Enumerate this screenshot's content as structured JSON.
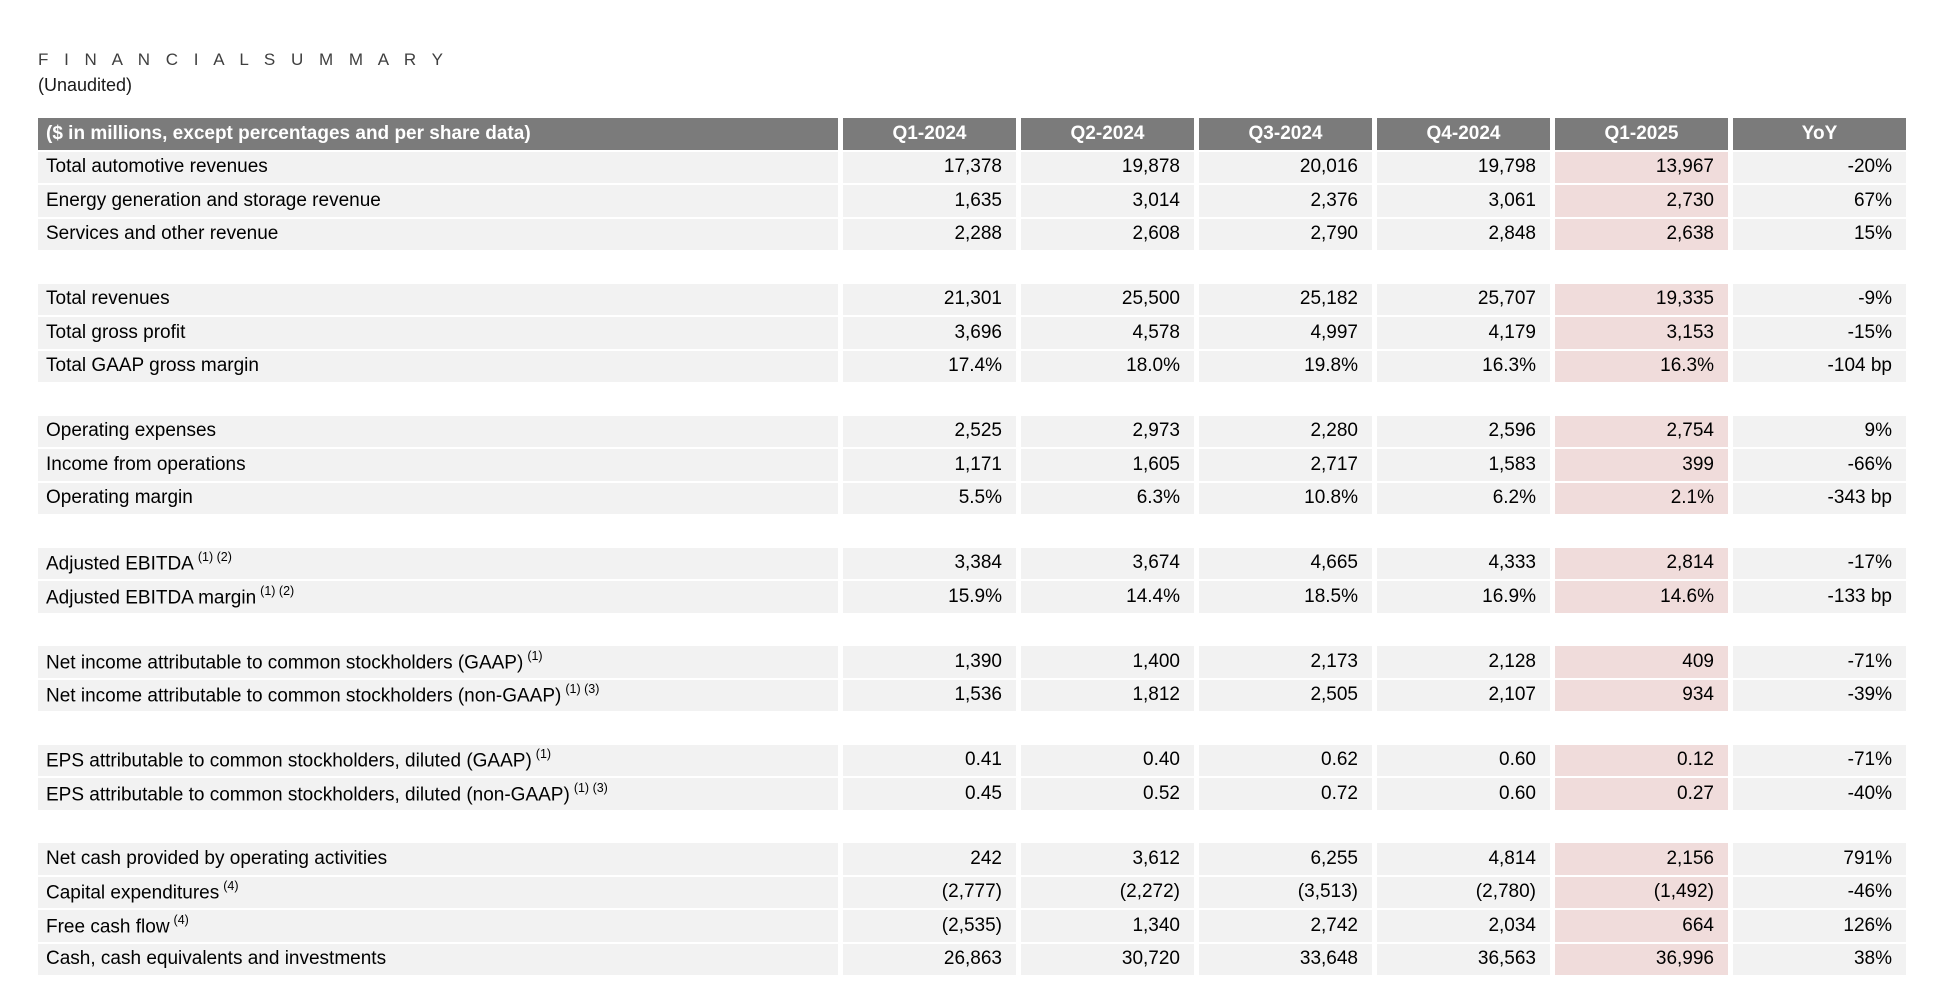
{
  "page": {
    "title": "F I N A N C I A L   S U M M A R Y",
    "subtitle": "(Unaudited)"
  },
  "colors": {
    "header_bg": "#7b7b7b",
    "header_text": "#ffffff",
    "row_bg": "#f2f2f2",
    "highlight_bg": "#f0dcdb",
    "title_text": "#3f3f3f"
  },
  "table": {
    "header": [
      "($ in millions, except percentages and per share data)",
      "Q1-2024",
      "Q2-2024",
      "Q3-2024",
      "Q4-2024",
      "Q1-2025",
      "YoY"
    ],
    "highlight_column": "Q1-2025",
    "highlight_value_index": 4,
    "rows": [
      {
        "type": "data",
        "label": "Total automotive revenues",
        "sup": "",
        "values": [
          "17,378",
          "19,878",
          "20,016",
          "19,798",
          "13,967",
          "-20%"
        ]
      },
      {
        "type": "data",
        "label": "Energy generation and storage revenue",
        "sup": "",
        "values": [
          "1,635",
          "3,014",
          "2,376",
          "3,061",
          "2,730",
          "67%"
        ]
      },
      {
        "type": "data",
        "label": "Services and other revenue",
        "sup": "",
        "values": [
          "2,288",
          "2,608",
          "2,790",
          "2,848",
          "2,638",
          "15%"
        ]
      },
      {
        "type": "spacer"
      },
      {
        "type": "data",
        "label": "Total revenues",
        "sup": "",
        "values": [
          "21,301",
          "25,500",
          "25,182",
          "25,707",
          "19,335",
          "-9%"
        ]
      },
      {
        "type": "data",
        "label": "Total gross profit",
        "sup": "",
        "values": [
          "3,696",
          "4,578",
          "4,997",
          "4,179",
          "3,153",
          "-15%"
        ]
      },
      {
        "type": "data",
        "label": "Total GAAP gross margin",
        "sup": "",
        "values": [
          "17.4%",
          "18.0%",
          "19.8%",
          "16.3%",
          "16.3%",
          "-104 bp"
        ]
      },
      {
        "type": "spacer"
      },
      {
        "type": "data",
        "label": "Operating expenses",
        "sup": "",
        "values": [
          "2,525",
          "2,973",
          "2,280",
          "2,596",
          "2,754",
          "9%"
        ]
      },
      {
        "type": "data",
        "label": "Income from operations",
        "sup": "",
        "values": [
          "1,171",
          "1,605",
          "2,717",
          "1,583",
          "399",
          "-66%"
        ]
      },
      {
        "type": "data",
        "label": "Operating margin",
        "sup": "",
        "values": [
          "5.5%",
          "6.3%",
          "10.8%",
          "6.2%",
          "2.1%",
          "-343 bp"
        ]
      },
      {
        "type": "spacer"
      },
      {
        "type": "data",
        "label": "Adjusted EBITDA",
        "sup": "(1) (2)",
        "values": [
          "3,384",
          "3,674",
          "4,665",
          "4,333",
          "2,814",
          "-17%"
        ]
      },
      {
        "type": "data",
        "label": "Adjusted EBITDA margin",
        "sup": "(1) (2)",
        "values": [
          "15.9%",
          "14.4%",
          "18.5%",
          "16.9%",
          "14.6%",
          "-133 bp"
        ]
      },
      {
        "type": "spacer"
      },
      {
        "type": "data",
        "label": "Net income attributable to common stockholders (GAAP)",
        "sup": "(1)",
        "values": [
          "1,390",
          "1,400",
          "2,173",
          "2,128",
          "409",
          "-71%"
        ]
      },
      {
        "type": "data",
        "label": "Net income attributable to common stockholders (non-GAAP)",
        "sup": "(1) (3)",
        "values": [
          "1,536",
          "1,812",
          "2,505",
          "2,107",
          "934",
          "-39%"
        ]
      },
      {
        "type": "spacer"
      },
      {
        "type": "data",
        "label": "EPS attributable to common stockholders, diluted (GAAP)",
        "sup": "(1)",
        "values": [
          "0.41",
          "0.40",
          "0.62",
          "0.60",
          "0.12",
          "-71%"
        ]
      },
      {
        "type": "data",
        "label": "EPS attributable to common stockholders, diluted (non-GAAP)",
        "sup": "(1) (3)",
        "values": [
          "0.45",
          "0.52",
          "0.72",
          "0.60",
          "0.27",
          "-40%"
        ]
      },
      {
        "type": "spacer"
      },
      {
        "type": "data",
        "label": "Net cash provided by operating activities",
        "sup": "",
        "values": [
          "242",
          "3,612",
          "6,255",
          "4,814",
          "2,156",
          "791%"
        ]
      },
      {
        "type": "data",
        "label": "Capital expenditures",
        "sup": "(4)",
        "values": [
          "(2,777)",
          "(2,272)",
          "(3,513)",
          "(2,780)",
          "(1,492)",
          "-46%"
        ]
      },
      {
        "type": "data",
        "label": "Free cash flow",
        "sup": "(4)",
        "values": [
          "(2,535)",
          "1,340",
          "2,742",
          "2,034",
          "664",
          "126%"
        ]
      },
      {
        "type": "data",
        "label": "Cash, cash equivalents and investments",
        "sup": "",
        "values": [
          "26,863",
          "30,720",
          "33,648",
          "36,563",
          "36,996",
          "38%"
        ]
      }
    ]
  }
}
